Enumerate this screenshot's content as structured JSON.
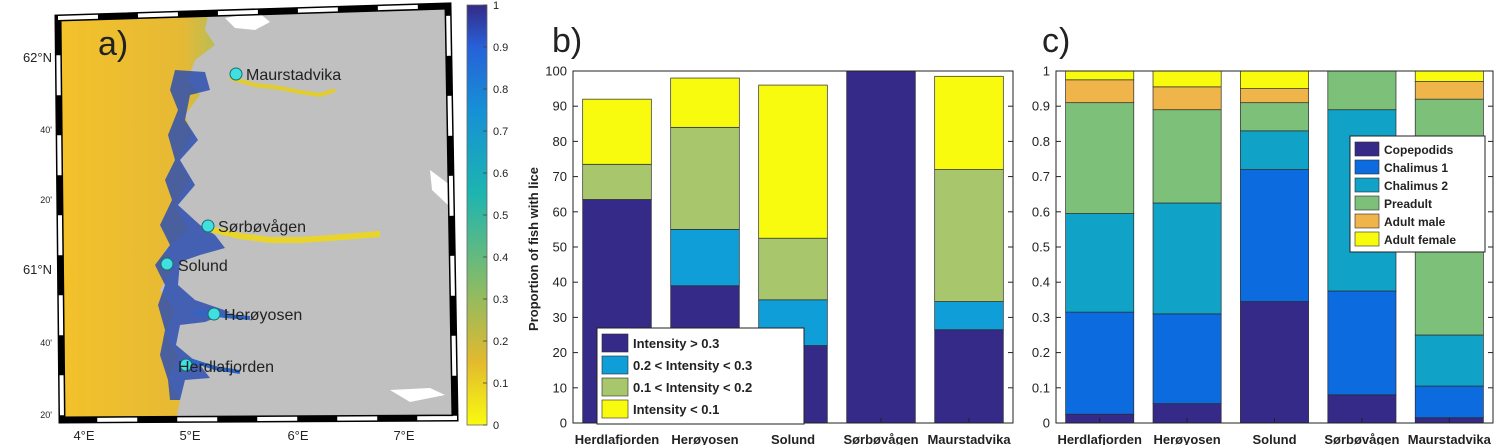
{
  "panels": {
    "a": {
      "panel_label": "a)",
      "lat_labels": [
        "62°N",
        "40'",
        "20'",
        "61°N",
        "40'",
        "20'"
      ],
      "lon_labels": [
        "4°E",
        "5°E",
        "6°E",
        "7°E"
      ],
      "sites": [
        "Maurstadvika",
        "Sørbøvågen",
        "Solund",
        "Herøyosen",
        "Herdlafjorden"
      ],
      "colorbar_ticks": [
        "0",
        "0.1",
        "0.2",
        "0.3",
        "0.4",
        "0.5",
        "0.6",
        "0.7",
        "0.8",
        "0.9",
        "1"
      ],
      "marker_color": "#40e0e0",
      "land_color": "#c0c0c0"
    }
  },
  "chart_data": [
    {
      "type": "bar",
      "stacked": true,
      "panel_label": "b)",
      "categories": [
        "Herdlafjorden",
        "Herøyosen",
        "Solund",
        "Sørbøvågen",
        "Maurstadvika"
      ],
      "ylabel": "Proportion of fish with lice",
      "xlabel": "",
      "ylim": [
        0,
        100
      ],
      "yticks": [
        "0",
        "10",
        "20",
        "30",
        "40",
        "50",
        "60",
        "70",
        "80",
        "90",
        "100"
      ],
      "legend_position": "bottom-left",
      "series": [
        {
          "name": "Intensity > 0.3",
          "color": "#352a87",
          "values": [
            63.5,
            39,
            22,
            100,
            26.5
          ]
        },
        {
          "name": "0.2 < Intensity < 0.3",
          "color": "#0f9ed8",
          "values": [
            0,
            16,
            13,
            0,
            8
          ]
        },
        {
          "name": "0.1 < Intensity < 0.2",
          "color": "#a8c66c",
          "values": [
            10,
            29,
            17.5,
            0,
            37.5
          ]
        },
        {
          "name": "Intensity < 0.1",
          "color": "#f9fb0e",
          "values": [
            18.5,
            14,
            43.5,
            0,
            26.5
          ]
        }
      ]
    },
    {
      "type": "bar",
      "stacked": true,
      "panel_label": "c)",
      "categories": [
        "Herdlafjorden",
        "Herøyosen",
        "Solund",
        "Sørbøvågen",
        "Maurstadvika"
      ],
      "ylabel": "",
      "xlabel": "",
      "ylim": [
        0,
        1
      ],
      "yticks": [
        "0",
        "0.1",
        "0.2",
        "0.3",
        "0.4",
        "0.5",
        "0.6",
        "0.7",
        "0.8",
        "0.9",
        "1"
      ],
      "legend_position": "top-right",
      "series": [
        {
          "name": "Copepodids",
          "color": "#352a87",
          "values": [
            0.025,
            0.055,
            0.345,
            0.08,
            0.015
          ]
        },
        {
          "name": "Chalimus 1",
          "color": "#0d6be0",
          "values": [
            0.29,
            0.255,
            0.375,
            0.295,
            0.09
          ]
        },
        {
          "name": "Chalimus 2",
          "color": "#10a3c7",
          "values": [
            0.28,
            0.315,
            0.11,
            0.515,
            0.145
          ]
        },
        {
          "name": "Preadult",
          "color": "#7cc07a",
          "values": [
            0.315,
            0.265,
            0.08,
            0.11,
            0.67
          ]
        },
        {
          "name": "Adult male",
          "color": "#f0b54a",
          "values": [
            0.065,
            0.065,
            0.04,
            0.0,
            0.05
          ]
        },
        {
          "name": "Adult female",
          "color": "#f9fb0e",
          "values": [
            0.025,
            0.045,
            0.05,
            0.0,
            0.03
          ]
        }
      ]
    }
  ]
}
